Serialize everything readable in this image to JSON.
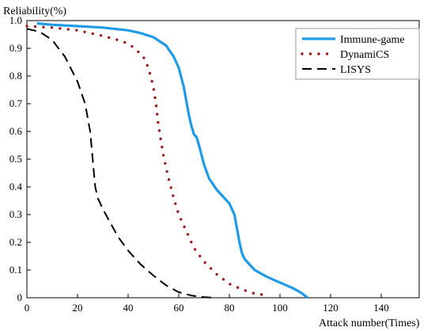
{
  "chart_data": {
    "type": "line",
    "xlabel": "Attack number(Times)",
    "ylabel": "Reliability(%)",
    "xlim": [
      0,
      155
    ],
    "ylim": [
      0,
      1.0
    ],
    "xticks": [
      0,
      20,
      40,
      60,
      80,
      100,
      120,
      140
    ],
    "yticks": [
      0,
      0.1,
      0.2,
      0.3,
      0.4,
      0.5,
      0.6,
      0.7,
      0.8,
      0.9,
      1.0
    ],
    "grid": false,
    "legend_position": "top-right",
    "series": [
      {
        "name": "Immune-game",
        "color": "#1f9be8",
        "style": "solid",
        "x": [
          4,
          10,
          20,
          30,
          40,
          45,
          50,
          55,
          58,
          60,
          62,
          64,
          65,
          66,
          67,
          68,
          70,
          72,
          75,
          78,
          80,
          82,
          84,
          85,
          86,
          88,
          90,
          95,
          100,
          105,
          108,
          111
        ],
        "y": [
          0.99,
          0.985,
          0.98,
          0.975,
          0.965,
          0.955,
          0.94,
          0.91,
          0.87,
          0.83,
          0.76,
          0.66,
          0.62,
          0.59,
          0.58,
          0.55,
          0.48,
          0.43,
          0.39,
          0.36,
          0.34,
          0.3,
          0.2,
          0.16,
          0.14,
          0.12,
          0.1,
          0.075,
          0.055,
          0.035,
          0.02,
          0.0
        ]
      },
      {
        "name": "DynamiCS",
        "color": "#9b1b1b",
        "style": "dotted",
        "x": [
          0,
          10,
          20,
          30,
          38,
          42,
          46,
          48,
          50,
          51,
          52,
          54,
          56,
          58,
          60,
          63,
          66,
          70,
          75,
          80,
          85,
          90,
          94
        ],
        "y": [
          0.98,
          0.975,
          0.965,
          0.945,
          0.925,
          0.905,
          0.87,
          0.83,
          0.76,
          0.7,
          0.62,
          0.51,
          0.43,
          0.36,
          0.3,
          0.24,
          0.18,
          0.13,
          0.085,
          0.05,
          0.03,
          0.015,
          0.01
        ]
      },
      {
        "name": "LISYS",
        "color": "#000000",
        "style": "dashed",
        "x": [
          0,
          5,
          10,
          15,
          20,
          23,
          25,
          26,
          27,
          28,
          30,
          33,
          36,
          40,
          45,
          50,
          55,
          60,
          65,
          70,
          74
        ],
        "y": [
          0.97,
          0.96,
          0.93,
          0.87,
          0.78,
          0.7,
          0.6,
          0.5,
          0.4,
          0.36,
          0.32,
          0.27,
          0.22,
          0.17,
          0.12,
          0.08,
          0.045,
          0.02,
          0.008,
          0.002,
          0.0
        ]
      }
    ]
  }
}
